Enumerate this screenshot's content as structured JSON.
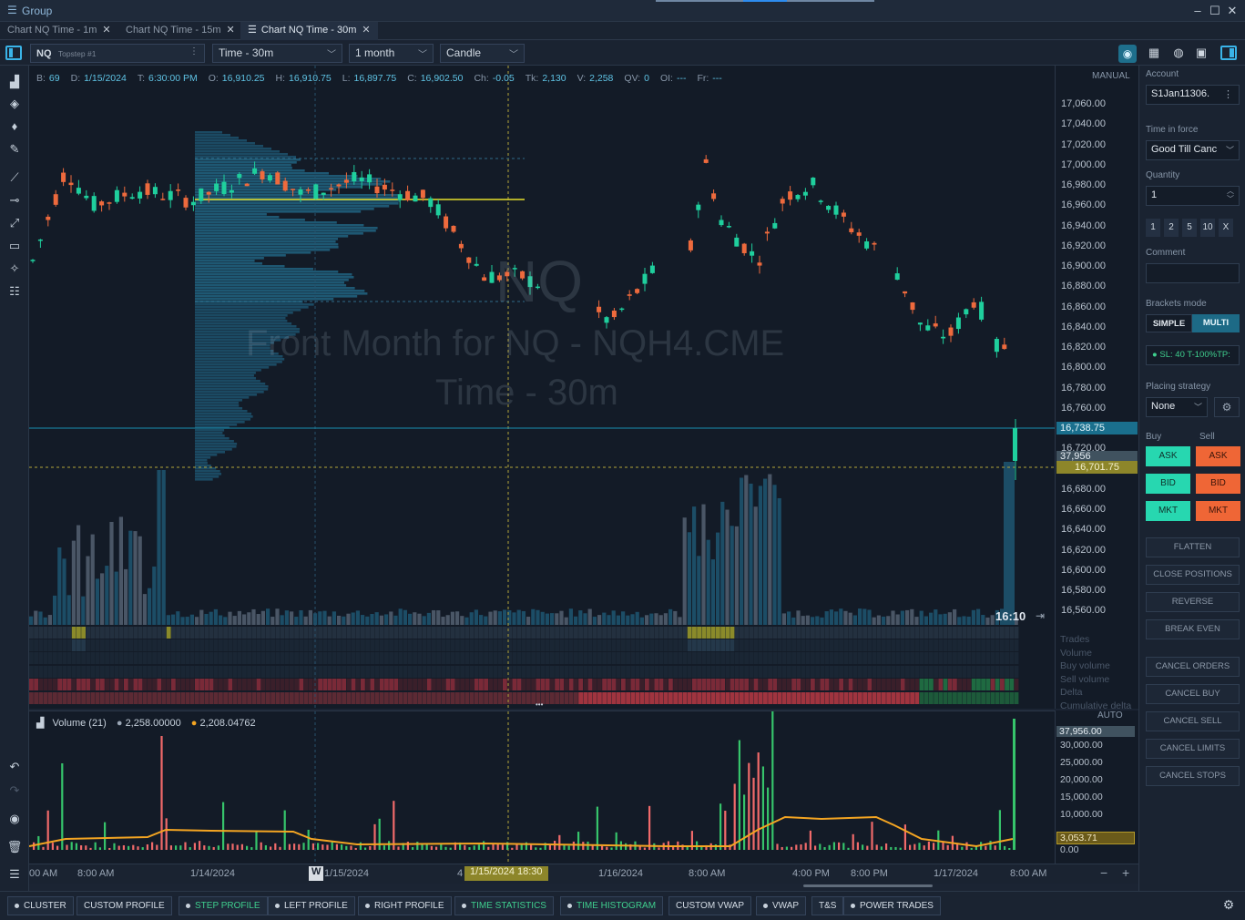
{
  "window": {
    "title": "Group"
  },
  "tabs": [
    {
      "label": "Chart NQ Time - 1m",
      "active": false
    },
    {
      "label": "Chart NQ Time - 15m",
      "active": false
    },
    {
      "label": "Chart NQ Time - 30m",
      "active": true
    }
  ],
  "toolbar": {
    "symbol": "NQ",
    "account_sub": "Topstep #1",
    "aggregation": "Time - 30m",
    "period": "1 month",
    "chart_type": "Candle"
  },
  "infobar": [
    {
      "k": "B:",
      "v": "69"
    },
    {
      "k": "D:",
      "v": "1/15/2024"
    },
    {
      "k": "T:",
      "v": "6:30:00 PM"
    },
    {
      "k": "O:",
      "v": "16,910.25"
    },
    {
      "k": "H:",
      "v": "16,910.75"
    },
    {
      "k": "L:",
      "v": "16,897.75"
    },
    {
      "k": "C:",
      "v": "16,902.50"
    },
    {
      "k": "Ch:",
      "v": "-0.05"
    },
    {
      "k": "Tk:",
      "v": "2,130"
    },
    {
      "k": "V:",
      "v": "2,258"
    },
    {
      "k": "QV:",
      "v": "0"
    },
    {
      "k": "OI:",
      "v": "---"
    },
    {
      "k": "Fr:",
      "v": "---"
    }
  ],
  "watermark": {
    "symbol": "NQ",
    "line1": "Front Month for NQ - NQH4.CME",
    "line2": "Time - 30m"
  },
  "price_axis": {
    "mode": "MANUAL",
    "labels": [
      "17,060.00",
      "17,040.00",
      "17,020.00",
      "17,000.00",
      "16,980.00",
      "16,960.00",
      "16,940.00",
      "16,920.00",
      "16,900.00",
      "16,880.00",
      "16,860.00",
      "16,840.00",
      "16,820.00",
      "16,800.00",
      "16,780.00",
      "16,760.00",
      "16,740.00",
      "16,720.00",
      "16,700.00",
      "16,680.00",
      "16,660.00",
      "16,640.00",
      "16,620.00",
      "16,600.00",
      "16,580.00",
      "16,560.00"
    ],
    "last_price": "16,738.75",
    "cursor_value": "37,956",
    "cursor_price": "16,701.75",
    "countdown": "16:10"
  },
  "cluster_rows": [
    "Trades",
    "Volume",
    "Buy volume",
    "Sell volume",
    "Delta",
    "Cumulative delta"
  ],
  "volume_panel": {
    "title": "Volume (21)",
    "v1": "2,258.00000",
    "v2": "2,208.04762",
    "mode": "AUTO",
    "axis_labels": [
      "37,956.00",
      "30,000.00",
      "25,000.00",
      "20,000.00",
      "15,000.00",
      "10,000.00",
      "3,053.71",
      "0.00"
    ]
  },
  "time_axis": {
    "labels": [
      "00 AM",
      "8:00 AM",
      "1/14/2024",
      "W",
      "1/15/2024",
      "4",
      "1/15/2024 18:30",
      "1/16/2024",
      "8:00 AM",
      "4:00 PM",
      "8:00 PM",
      "1/17/2024",
      "8:00 AM"
    ]
  },
  "right_panel": {
    "account_label": "Account",
    "account_value": "S1Jan11306.",
    "tif_label": "Time in force",
    "tif_value": "Good Till Canc",
    "qty_label": "Quantity",
    "qty_value": "1",
    "qty_buttons": [
      "1",
      "2",
      "5",
      "10",
      "X"
    ],
    "comment_label": "Comment",
    "brackets_label": "Brackets mode",
    "bracket_simple": "SIMPLE",
    "bracket_multi": "MULTI",
    "bracket_info": "SL: 40 T-100%TP:",
    "placing_label": "Placing strategy",
    "placing_value": "None",
    "buy_label": "Buy",
    "sell_label": "Sell",
    "ask": "ASK",
    "bid": "BID",
    "mkt": "MKT",
    "actions": [
      "FLATTEN",
      "CLOSE POSITIONS",
      "REVERSE",
      "BREAK EVEN",
      "CANCEL ORDERS",
      "CANCEL BUY",
      "CANCEL SELL",
      "CANCEL LIMITS",
      "CANCEL STOPS"
    ]
  },
  "bottom_buttons": [
    {
      "label": "CLUSTER",
      "dot": true,
      "on": false
    },
    {
      "label": "CUSTOM PROFILE",
      "dot": false,
      "on": false
    },
    {
      "label": "STEP PROFILE",
      "dot": true,
      "on": true
    },
    {
      "label": "LEFT PROFILE",
      "dot": true,
      "on": false
    },
    {
      "label": "RIGHT PROFILE",
      "dot": true,
      "on": false
    },
    {
      "label": "TIME STATISTICS",
      "dot": true,
      "on": true
    },
    {
      "label": "TIME HISTOGRAM",
      "dot": true,
      "on": true
    },
    {
      "label": "CUSTOM VWAP",
      "dot": false,
      "on": false
    },
    {
      "label": "VWAP",
      "dot": true,
      "on": false
    },
    {
      "label": "T&S",
      "dot": false,
      "on": false
    },
    {
      "label": "POWER TRADES",
      "dot": true,
      "on": false
    }
  ],
  "colors": {
    "up": "#1fcf9d",
    "down": "#ee6a3d",
    "accent": "#19b6d1",
    "poc": "#e6e02b"
  }
}
